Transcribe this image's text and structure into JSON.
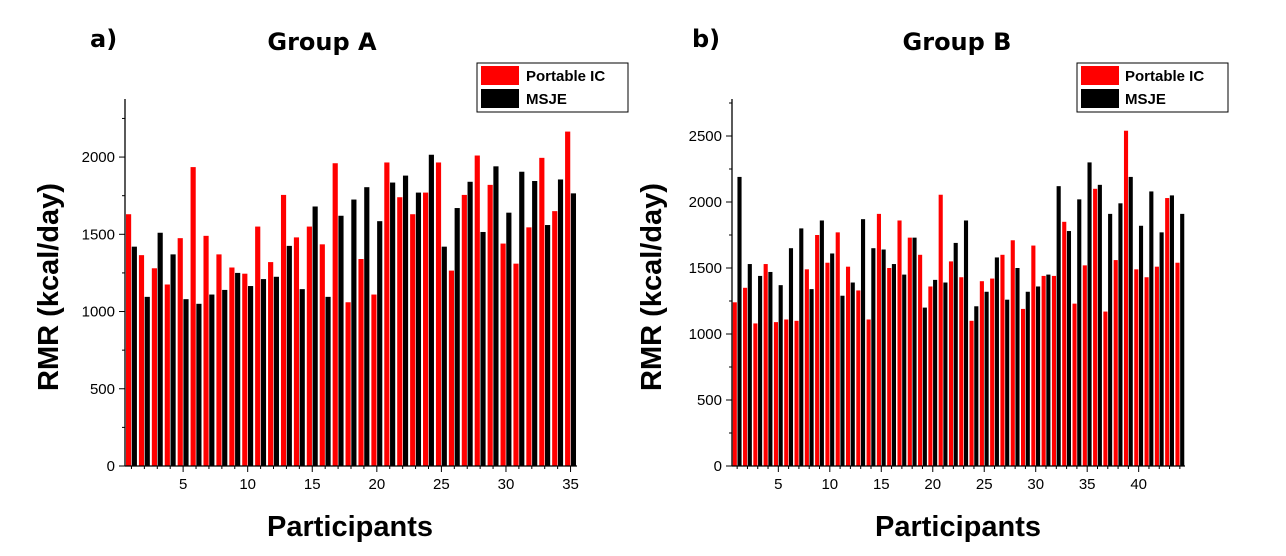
{
  "colors": {
    "portable_ic": "#ff0000",
    "msje": "#000000"
  },
  "chart_data": [
    {
      "type": "bar",
      "panel_label": "a)",
      "title": "Group A",
      "xlabel": "Participants",
      "ylabel": "RMR (kcal/day)",
      "ylim": [
        0,
        2350
      ],
      "xlim": [
        0.5,
        35.5
      ],
      "yticks": [
        0,
        500,
        1000,
        1500,
        2000
      ],
      "xticks": [
        5,
        10,
        15,
        20,
        25,
        30,
        35
      ],
      "legend_position": "top-right",
      "legend": [
        "Portable IC",
        "MSJE"
      ],
      "x": [
        1,
        2,
        3,
        4,
        5,
        6,
        7,
        8,
        9,
        10,
        11,
        12,
        13,
        14,
        15,
        16,
        17,
        18,
        19,
        20,
        21,
        22,
        23,
        24,
        25,
        26,
        27,
        28,
        29,
        30,
        31,
        32,
        33,
        34,
        35
      ],
      "series": [
        {
          "name": "Portable IC",
          "color": "#ff0000",
          "values": [
            1630,
            1365,
            1280,
            1175,
            1475,
            1935,
            1490,
            1370,
            1285,
            1245,
            1550,
            1320,
            1755,
            1480,
            1550,
            1435,
            1960,
            1060,
            1340,
            1110,
            1965,
            1740,
            1630,
            1770,
            1965,
            1265,
            1755,
            2010,
            1820,
            1440,
            1310,
            1545,
            1995,
            1650,
            2165
          ]
        },
        {
          "name": "MSJE",
          "color": "#000000",
          "values": [
            1420,
            1095,
            1510,
            1370,
            1080,
            1050,
            1110,
            1140,
            1250,
            1165,
            1210,
            1225,
            1425,
            1145,
            1680,
            1095,
            1620,
            1725,
            1805,
            1585,
            1835,
            1880,
            1770,
            2015,
            1420,
            1670,
            1840,
            1515,
            1940,
            1640,
            1905,
            1845,
            1560,
            1855,
            1765
          ]
        }
      ]
    },
    {
      "type": "bar",
      "panel_label": "b)",
      "title": "Group B",
      "xlabel": "Participants",
      "ylabel": "RMR (kcal/day)",
      "ylim": [
        0,
        2750
      ],
      "xlim": [
        0.5,
        44.5
      ],
      "yticks": [
        0,
        500,
        1000,
        1500,
        2000,
        2500
      ],
      "xticks": [
        5,
        10,
        15,
        20,
        25,
        30,
        35,
        40
      ],
      "legend_position": "top-right",
      "legend": [
        "Portable IC",
        "MSJE"
      ],
      "x": [
        1,
        2,
        3,
        4,
        5,
        6,
        7,
        8,
        9,
        10,
        11,
        12,
        13,
        14,
        15,
        16,
        17,
        18,
        19,
        20,
        21,
        22,
        23,
        24,
        25,
        26,
        27,
        28,
        29,
        30,
        31,
        32,
        33,
        34,
        35,
        36,
        37,
        38,
        39,
        40,
        41,
        42,
        43,
        44
      ],
      "series": [
        {
          "name": "Portable IC",
          "color": "#ff0000",
          "values": [
            1240,
            1350,
            1080,
            1530,
            1090,
            1110,
            1100,
            1490,
            1750,
            1540,
            1770,
            1510,
            1330,
            1110,
            1910,
            1500,
            1860,
            1730,
            1600,
            1360,
            2055,
            1550,
            1430,
            1100,
            1400,
            1420,
            1600,
            1710,
            1190,
            1670,
            1440,
            1440,
            1850,
            1230,
            1520,
            2100,
            1170,
            1560,
            2540,
            1490,
            1430,
            1510,
            2030,
            1540
          ]
        },
        {
          "name": "MSJE",
          "color": "#000000",
          "values": [
            2190,
            1530,
            1440,
            1470,
            1370,
            1650,
            1800,
            1340,
            1860,
            1610,
            1290,
            1390,
            1870,
            1650,
            1640,
            1530,
            1450,
            1730,
            1200,
            1410,
            1390,
            1690,
            1860,
            1210,
            1320,
            1580,
            1260,
            1500,
            1320,
            1360,
            1450,
            2120,
            1780,
            2020,
            2300,
            2130,
            1910,
            1990,
            2190,
            1820,
            2080,
            1770,
            2050,
            1910
          ]
        }
      ]
    }
  ]
}
